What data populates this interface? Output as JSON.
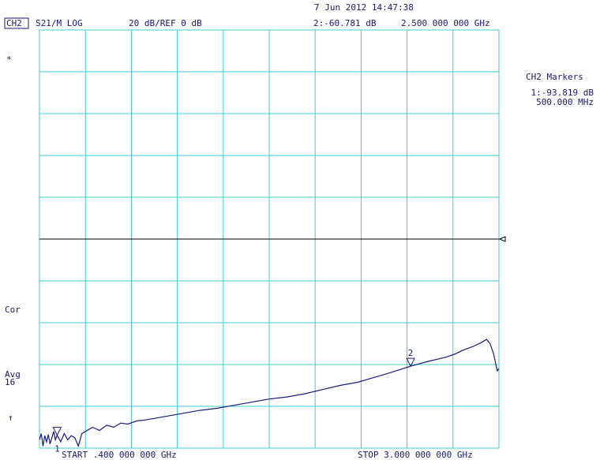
{
  "chart_data": {
    "type": "line",
    "timestamp": "7 Jun 2012  14:47:38",
    "channel": "CH2",
    "measurement": "S21/M LOG",
    "scale": "20 dB/REF 0 dB",
    "active_marker": "2:-60.781 dB",
    "active_marker_freq": "2.500 000 000 GHz",
    "status_star": "*",
    "status_cor": "Cor",
    "status_avg": "Avg",
    "status_avg_count": "16",
    "status_arrow": "↑",
    "marker_panel_title": "CH2 Markers",
    "marker_panel_value": "1:-93.819 dB",
    "marker_panel_freq": "500.000 MHz",
    "start_label": "START .400 000 000 GHz",
    "stop_label": "STOP 3.000 000 000 GHz",
    "reference": 0,
    "xlim": [
      0.4,
      3.0
    ],
    "ylim": [
      -100,
      100
    ],
    "xticks": [
      0.4,
      0.66,
      0.92,
      1.18,
      1.44,
      1.7,
      1.96,
      2.22,
      2.48,
      2.74,
      3.0
    ],
    "yticks": [
      -100,
      -80,
      -60,
      -40,
      -20,
      0,
      20,
      40,
      60,
      80,
      100
    ],
    "grid": true,
    "grid_color": "#40cccc",
    "series": [
      {
        "color": "#1a1a80",
        "x": [
          0.4,
          0.41,
          0.42,
          0.43,
          0.44,
          0.45,
          0.46,
          0.47,
          0.48,
          0.49,
          0.5,
          0.52,
          0.54,
          0.56,
          0.58,
          0.6,
          0.62,
          0.64,
          0.66,
          0.7,
          0.74,
          0.78,
          0.82,
          0.86,
          0.9,
          0.95,
          1.0,
          1.1,
          1.2,
          1.3,
          1.4,
          1.5,
          1.6,
          1.7,
          1.8,
          1.9,
          2.0,
          2.1,
          2.2,
          2.3,
          2.4,
          2.5,
          2.6,
          2.7,
          2.75,
          2.8,
          2.85,
          2.9,
          2.93,
          2.95,
          2.97,
          2.99,
          3.0
        ],
        "values": [
          -96,
          -93,
          -99,
          -94,
          -97,
          -93.5,
          -98,
          -95,
          -92,
          -96,
          -93.8,
          -97,
          -93,
          -96,
          -94,
          -95,
          -99,
          -93,
          -92,
          -90,
          -91.5,
          -89,
          -90,
          -88,
          -88.5,
          -87,
          -86.5,
          -85,
          -83.5,
          -82,
          -81,
          -79.5,
          -78,
          -76.5,
          -75.5,
          -74,
          -72,
          -70,
          -68.5,
          -66,
          -63.5,
          -60.8,
          -58.5,
          -56.5,
          -55,
          -53,
          -51.5,
          -49.5,
          -48,
          -50,
          -55,
          -63,
          -62
        ]
      }
    ],
    "markers": [
      {
        "label": "1",
        "x": 0.5,
        "value": -93.819
      },
      {
        "label": "2",
        "x": 2.5,
        "value": -60.781
      }
    ]
  }
}
